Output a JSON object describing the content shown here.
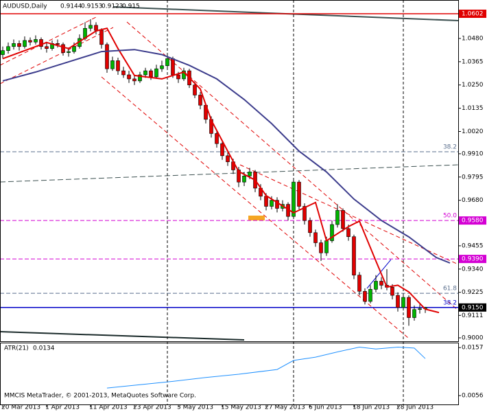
{
  "chart_data": {
    "type": "candlestick",
    "title": "AUDUSD,Daily",
    "footer": "MMCIS MetaTrader, © 2001-2013, MetaQuotes Software Corp.",
    "categories": [
      "20 Mar 2013",
      null,
      null,
      null,
      null,
      null,
      null,
      null,
      "1 Apr 2013",
      null,
      null,
      null,
      null,
      null,
      null,
      null,
      "11 Apr 2013",
      null,
      null,
      null,
      null,
      null,
      null,
      null,
      "23 Apr 2013",
      null,
      null,
      null,
      null,
      null,
      null,
      null,
      "3 May 2013",
      null,
      null,
      null,
      null,
      null,
      null,
      null,
      "15 May 2013",
      null,
      null,
      null,
      null,
      null,
      null,
      null,
      "27 May 2013",
      null,
      null,
      null,
      null,
      null,
      null,
      null,
      "6 Jun 2013",
      null,
      null,
      null,
      null,
      null,
      null,
      null,
      "18 Jun 2013",
      null,
      null,
      null,
      null,
      null,
      null,
      null,
      "28 Jun 2013",
      null,
      null,
      null,
      null,
      null
    ],
    "open": [
      1.04,
      1.042,
      1.044,
      1.0455,
      1.044,
      1.047,
      1.0462,
      1.0475,
      1.044,
      1.043,
      1.0455,
      1.045,
      1.041,
      1.0415,
      1.044,
      1.048,
      1.053,
      1.0545,
      1.052,
      1.045,
      1.033,
      1.037,
      1.032,
      1.03,
      1.028,
      1.027,
      1.03,
      1.032,
      1.029,
      1.033,
      1.0345,
      1.038,
      1.03,
      1.028,
      1.032,
      1.025,
      1.02,
      1.015,
      1.008,
      1.001,
      0.996,
      0.99,
      0.987,
      0.983,
      0.977,
      0.98,
      0.982,
      0.974,
      0.97,
      0.965,
      0.968,
      0.964,
      0.966,
      0.96,
      0.977,
      0.965,
      0.958,
      0.952,
      0.947,
      0.942,
      0.948,
      0.956,
      0.963,
      0.954,
      0.95,
      0.931,
      0.923,
      0.918,
      0.924,
      0.928,
      0.926,
      0.925,
      0.921,
      0.915,
      0.92,
      0.91,
      0.914,
      0.9144
    ],
    "high": [
      1.044,
      1.046,
      1.0475,
      1.047,
      1.049,
      1.0485,
      1.0495,
      1.0485,
      1.046,
      1.047,
      1.0475,
      1.046,
      1.0435,
      1.046,
      1.05,
      1.056,
      1.0575,
      1.056,
      1.053,
      1.046,
      1.039,
      1.0385,
      1.034,
      1.032,
      1.03,
      1.0315,
      1.0335,
      1.033,
      1.035,
      1.037,
      1.04,
      1.039,
      1.0315,
      1.0335,
      1.033,
      1.0265,
      1.0215,
      1.016,
      1.0095,
      1.003,
      0.9975,
      0.992,
      0.9885,
      0.9845,
      0.982,
      0.984,
      0.983,
      0.976,
      0.9715,
      0.97,
      0.9695,
      0.968,
      0.967,
      0.979,
      0.978,
      0.9665,
      0.9595,
      0.9535,
      0.9485,
      0.95,
      0.958,
      0.966,
      0.964,
      0.956,
      0.951,
      0.9325,
      0.9245,
      0.926,
      0.931,
      0.93,
      0.934,
      0.9265,
      0.9225,
      0.922,
      0.921,
      0.916,
      0.9165,
      0.9153
    ],
    "low": [
      1.038,
      1.0405,
      1.0425,
      1.042,
      1.043,
      1.0445,
      1.045,
      1.0425,
      1.041,
      1.042,
      1.0435,
      1.0395,
      1.039,
      1.0405,
      1.043,
      1.047,
      1.0515,
      1.05,
      1.043,
      1.031,
      1.032,
      1.03,
      1.0285,
      1.026,
      1.025,
      1.026,
      1.0285,
      1.0275,
      1.028,
      1.0315,
      1.033,
      1.0285,
      1.026,
      1.027,
      1.0235,
      1.0185,
      1.013,
      1.006,
      0.999,
      0.994,
      0.988,
      0.985,
      0.981,
      0.9745,
      0.975,
      0.9785,
      0.972,
      0.968,
      0.963,
      0.9635,
      0.962,
      0.9625,
      0.958,
      0.959,
      0.9635,
      0.956,
      0.95,
      0.945,
      0.938,
      0.9405,
      0.947,
      0.9545,
      0.9525,
      0.948,
      0.929,
      0.921,
      0.9165,
      0.917,
      0.9225,
      0.924,
      0.9235,
      0.919,
      0.913,
      0.9135,
      0.906,
      0.9085,
      0.912,
      0.9123
    ],
    "close": [
      1.042,
      1.044,
      1.0455,
      1.044,
      1.047,
      1.0462,
      1.0475,
      1.044,
      1.043,
      1.0455,
      1.045,
      1.041,
      1.0415,
      1.044,
      1.048,
      1.053,
      1.0545,
      1.052,
      1.045,
      1.033,
      1.037,
      1.032,
      1.03,
      1.028,
      1.027,
      1.03,
      1.032,
      1.029,
      1.033,
      1.0345,
      1.038,
      1.03,
      1.028,
      1.032,
      1.025,
      1.02,
      1.015,
      1.008,
      1.001,
      0.996,
      0.99,
      0.987,
      0.983,
      0.977,
      0.98,
      0.982,
      0.974,
      0.97,
      0.965,
      0.968,
      0.964,
      0.966,
      0.96,
      0.977,
      0.965,
      0.958,
      0.952,
      0.947,
      0.942,
      0.948,
      0.956,
      0.963,
      0.954,
      0.95,
      0.931,
      0.923,
      0.918,
      0.924,
      0.928,
      0.926,
      0.925,
      0.921,
      0.915,
      0.92,
      0.91,
      0.914,
      0.9144,
      0.915
    ],
    "up_color": "#00b400",
    "down_color": "#e00000",
    "overlays": [
      {
        "color": "#e00000",
        "x": [
          0,
          8,
          12,
          17,
          19,
          21,
          24,
          29,
          33,
          36,
          38,
          41,
          43,
          46,
          48,
          51,
          53,
          57,
          59,
          63,
          65,
          68,
          70,
          72,
          74,
          77,
          79.5
        ],
        "values": [
          1.038,
          1.046,
          1.043,
          1.0517,
          1.053,
          1.043,
          1.0297,
          1.028,
          1.0314,
          1.023,
          1.0076,
          0.9923,
          0.9822,
          0.978,
          0.9703,
          0.9652,
          0.9618,
          0.9669,
          0.948,
          0.955,
          0.9577,
          0.938,
          0.9251,
          0.926,
          0.9227,
          0.9142,
          0.9125
        ]
      },
      {
        "color": "#3c3c8c",
        "x": [
          0,
          6,
          12,
          18,
          24,
          29,
          34,
          39,
          44,
          49,
          54,
          59,
          64,
          69,
          74,
          79,
          81.5
        ],
        "values": [
          1.027,
          1.0314,
          1.0364,
          1.0415,
          1.0425,
          1.04,
          1.0347,
          1.028,
          1.0178,
          1.0059,
          0.9923,
          0.982,
          0.9686,
          0.958,
          0.9499,
          0.9397,
          0.937
        ]
      }
    ],
    "ylim": [
      0.8983,
      1.067
    ],
    "yticks": [
      {
        "value": 1.048,
        "label": "1.0480"
      },
      1.0365,
      {
        "value": 1.025,
        "label": "1.0250"
      },
      1.0135,
      {
        "value": 1.002,
        "label": "1.0020"
      },
      {
        "value": 0.991,
        "label": "0.9910"
      },
      0.9795,
      {
        "value": 0.968,
        "label": "0.9680"
      },
      0.9455,
      {
        "value": 0.934,
        "label": "0.9340"
      },
      0.9225,
      0.9111,
      {
        "value": 0.9,
        "label": "0.9000"
      }
    ],
    "levels": [
      {
        "value": 1.0602,
        "label": "1.0602",
        "color": "#e00000",
        "style": "solid"
      },
      {
        "value": 0.992,
        "fib": "38.2",
        "color": "#5a6e8c",
        "style": "dash"
      },
      {
        "value": 0.958,
        "label": "0.9580",
        "fib": "50.0",
        "color": "#d400d4",
        "style": "dash"
      },
      {
        "value": 0.939,
        "label": "0.9390",
        "color": "#d400d4",
        "style": "dash"
      },
      {
        "value": 0.922,
        "fib": "61.8",
        "color": "#5a6e8c",
        "style": "dash"
      },
      {
        "value": 0.915,
        "label": "0.9150",
        "fib": "38.2",
        "color": "#0000c8",
        "style": "solid"
      }
    ],
    "atr": {
      "title": "ATR(21)",
      "color": "#1e90ff",
      "x": [
        19,
        25,
        31,
        37,
        43,
        50,
        53,
        57,
        61,
        65,
        68,
        72,
        75,
        77
      ],
      "values": [
        0.0072,
        0.0079,
        0.0086,
        0.0094,
        0.0101,
        0.0111,
        0.013,
        0.0137,
        0.0148,
        0.0158,
        0.0154,
        0.0158,
        0.0156,
        0.0134
      ],
      "ylim": [
        0.0036,
        0.0166
      ],
      "yticks": [
        0.0157,
        0.0056
      ]
    }
  }
}
